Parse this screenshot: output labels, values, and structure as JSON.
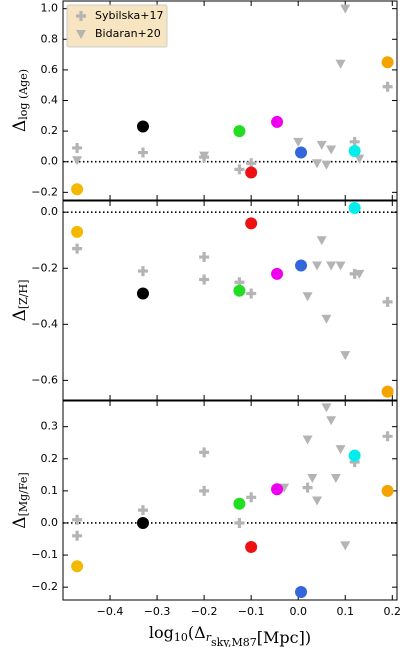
{
  "chart_data": [
    {
      "type": "scatter",
      "ylabel": "Δ",
      "ylabel_sub": "log (Age)",
      "legend": "upper left",
      "xlim": [
        -0.5,
        0.21
      ],
      "xticks": [
        {
          "value": -0.4,
          "label": "−0.4"
        },
        {
          "value": -0.3,
          "label": "−0.3"
        },
        {
          "value": -0.2,
          "label": "−0.2"
        },
        {
          "value": -0.1,
          "label": "−0.1"
        },
        {
          "value": 0,
          "label": "0.0"
        },
        0.1,
        0.2
      ],
      "xtick_labels": false,
      "ylim": [
        -0.25,
        1.05
      ],
      "yticks": [
        {
          "value": -0.2,
          "label": "−0.2"
        },
        {
          "value": 0,
          "label": "0.0"
        },
        0.2,
        0.4,
        0.6,
        0.8,
        {
          "value": 1,
          "label": "1.0"
        }
      ],
      "hline": 0,
      "series": [
        {
          "name": "Sybilska+17",
          "marker": "plus",
          "color": "#b4b4b4",
          "x": [
            -0.47,
            -0.33,
            -0.2,
            -0.125,
            -0.1,
            0.12,
            0.19
          ],
          "values": [
            0.09,
            0.06,
            0.03,
            -0.05,
            -0.01,
            0.13,
            0.49
          ]
        },
        {
          "name": "Bidaran+20",
          "marker": "triangle",
          "color": "#b4b4b4",
          "x": [
            -0.47,
            -0.2,
            0.0,
            0.04,
            0.05,
            0.06,
            0.07,
            0.09,
            0.1,
            0.13
          ],
          "values": [
            0.01,
            0.04,
            0.13,
            -0.01,
            0.11,
            -0.02,
            0.08,
            0.64,
            1.0,
            0.02
          ]
        },
        {
          "marker": "circle",
          "colors": [
            "#f5b800",
            "#000000",
            "#22dd22",
            "#ee1111",
            "#ee00ee",
            "#3366dd",
            "#00eeee",
            "#f5a300"
          ],
          "x": [
            -0.47,
            -0.33,
            -0.125,
            -0.1,
            -0.045,
            0.006,
            0.12,
            0.19
          ],
          "values": [
            -0.18,
            0.23,
            0.2,
            -0.07,
            0.26,
            0.06,
            0.07,
            0.65
          ]
        }
      ]
    },
    {
      "type": "scatter",
      "ylabel": "Δ",
      "ylabel_sub": "[Z/H]",
      "xlim": [
        -0.5,
        0.21
      ],
      "xticks": [
        {
          "value": -0.4,
          "label": "−0.4"
        },
        {
          "value": -0.3,
          "label": "−0.3"
        },
        {
          "value": -0.2,
          "label": "−0.2"
        },
        {
          "value": -0.1,
          "label": "−0.1"
        },
        {
          "value": 0,
          "label": "0.0"
        },
        0.1,
        0.2
      ],
      "xtick_labels": false,
      "ylim": [
        -0.67,
        0.04
      ],
      "yticks": [
        {
          "value": -0.6,
          "label": "−0.6"
        },
        {
          "value": -0.4,
          "label": "−0.4"
        },
        {
          "value": -0.2,
          "label": "−0.2"
        },
        {
          "value": 0,
          "label": "0.0"
        }
      ],
      "hline": 0,
      "series": [
        {
          "name": "Sybilska+17",
          "marker": "plus",
          "color": "#b4b4b4",
          "x": [
            -0.47,
            -0.33,
            -0.2,
            -0.2,
            -0.125,
            -0.1,
            0.006,
            0.12,
            0.19
          ],
          "values": [
            -0.13,
            -0.21,
            -0.16,
            -0.24,
            -0.25,
            -0.29,
            -0.19,
            -0.22,
            -0.32
          ]
        },
        {
          "name": "Bidaran+20",
          "marker": "triangle",
          "color": "#b4b4b4",
          "x": [
            0.02,
            0.04,
            0.05,
            0.06,
            0.07,
            0.09,
            0.1,
            0.13
          ],
          "values": [
            -0.3,
            -0.19,
            -0.1,
            -0.38,
            -0.19,
            -0.19,
            -0.51,
            -0.22
          ]
        },
        {
          "marker": "circle",
          "colors": [
            "#f5b800",
            "#000000",
            "#22dd22",
            "#ee1111",
            "#ee00ee",
            "#3366dd",
            "#00eeee",
            "#f5a300"
          ],
          "x": [
            -0.47,
            -0.33,
            -0.125,
            -0.1,
            -0.045,
            0.006,
            0.12,
            0.19
          ],
          "values": [
            -0.07,
            -0.29,
            -0.28,
            -0.04,
            -0.22,
            -0.19,
            0.015,
            -0.64
          ]
        }
      ]
    },
    {
      "type": "scatter",
      "ylabel": "Δ",
      "ylabel_sub": "[Mg/Fe]",
      "xlabel": [
        "log",
        "10",
        "(Δ",
        "r",
        "",
        "sky,M87",
        "[Mpc])"
      ],
      "xlim": [
        -0.5,
        0.21
      ],
      "xticks": [
        {
          "value": -0.4,
          "label": "−0.4"
        },
        {
          "value": -0.3,
          "label": "−0.3"
        },
        {
          "value": -0.2,
          "label": "−0.2"
        },
        {
          "value": -0.1,
          "label": "−0.1"
        },
        {
          "value": 0,
          "label": "0.0"
        },
        0.1,
        0.2
      ],
      "xtick_labels": true,
      "ylim": [
        -0.24,
        0.38
      ],
      "yticks": [
        {
          "value": -0.2,
          "label": "−0.2"
        },
        {
          "value": -0.1,
          "label": "−0.1"
        },
        {
          "value": 0,
          "label": "0.0"
        },
        0.1,
        0.2,
        0.3
      ],
      "hline": 0,
      "series": [
        {
          "name": "Sybilska+17",
          "marker": "plus",
          "color": "#b4b4b4",
          "x": [
            -0.47,
            -0.47,
            -0.33,
            -0.2,
            -0.2,
            -0.125,
            -0.1,
            0.02,
            0.12,
            0.19
          ],
          "values": [
            0.01,
            -0.04,
            0.04,
            0.22,
            0.1,
            0.0,
            0.08,
            0.11,
            0.19,
            0.27
          ]
        },
        {
          "name": "Bidaran+20",
          "marker": "triangle",
          "color": "#b4b4b4",
          "x": [
            -0.03,
            0.02,
            0.03,
            0.04,
            0.06,
            0.07,
            0.08,
            0.09,
            0.1
          ],
          "values": [
            0.11,
            0.26,
            0.14,
            0.07,
            0.36,
            0.32,
            0.14,
            0.23,
            -0.07
          ]
        },
        {
          "marker": "circle",
          "colors": [
            "#f5b800",
            "#000000",
            "#22dd22",
            "#ee1111",
            "#ee00ee",
            "#3366dd",
            "#00eeee",
            "#f5a300"
          ],
          "x": [
            -0.47,
            -0.33,
            -0.125,
            -0.1,
            -0.045,
            0.006,
            0.12,
            0.19
          ],
          "values": [
            -0.135,
            0.0,
            0.06,
            -0.075,
            0.105,
            -0.215,
            0.21,
            0.1
          ]
        }
      ]
    }
  ]
}
